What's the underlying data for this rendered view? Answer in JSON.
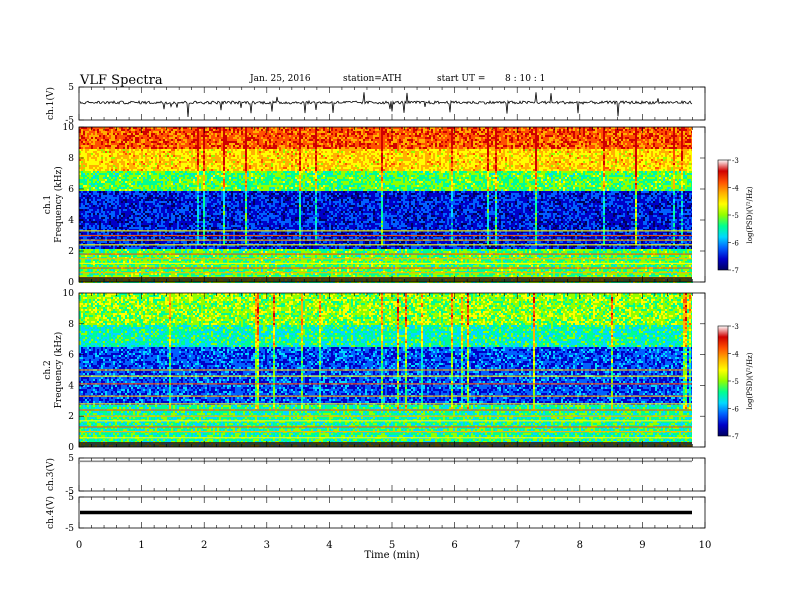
{
  "header": {
    "title": "VLF Spectra",
    "date": "Jan. 25, 2016",
    "station": "station=ATH",
    "start_label": "start UT =",
    "start_time": "8 : 10 : 1"
  },
  "chart_data": [
    {
      "type": "line",
      "name": "ch1-waveform",
      "ylabel": "ch.1(V)",
      "ylim": [
        -5,
        5
      ],
      "yticks": [
        5,
        -5
      ],
      "xlim": [
        0,
        10
      ],
      "baseline_v": 0.3,
      "description_series": "continuous voltage trace with spikes up to about +3 V and down to about -4 V"
    },
    {
      "type": "heatmap",
      "name": "ch1-spectrogram",
      "ylabel_channel": "ch.1",
      "ylabel": "Frequency (kHz)",
      "ylim": [
        0,
        10
      ],
      "yticks": [
        0,
        2,
        4,
        6,
        8,
        10
      ],
      "xlim": [
        0,
        9.8
      ],
      "colorbar": {
        "label": "log(PSD)(V²/Hz)",
        "range": [
          -7,
          -3
        ],
        "ticks": [
          -3,
          -4,
          -5,
          -6,
          -7
        ]
      },
      "bands": [
        {
          "kHz": [
            0,
            2.2
          ],
          "level": -5.0
        },
        {
          "kHz": [
            2.2,
            6.0
          ],
          "level": -6.3
        },
        {
          "kHz": [
            6.0,
            7.2
          ],
          "level": -5.0
        },
        {
          "kHz": [
            7.2,
            8.6
          ],
          "level": -4.2
        },
        {
          "kHz": [
            8.6,
            10
          ],
          "level": -3.6
        }
      ],
      "tones_kHz": [
        0.3,
        0.6,
        0.9,
        1.2,
        1.5,
        1.8,
        2.4,
        2.7,
        3.0,
        3.3
      ]
    },
    {
      "type": "heatmap",
      "name": "ch2-spectrogram",
      "ylabel_channel": "ch.2",
      "ylabel": "Frequency (kHz)",
      "ylim": [
        0,
        10
      ],
      "yticks": [
        0,
        2,
        4,
        6,
        8,
        10
      ],
      "xlim": [
        0,
        9.8
      ],
      "colorbar": {
        "label": "log(PSD)(V²/Hz)",
        "range": [
          -7,
          -3
        ],
        "ticks": [
          -3,
          -4,
          -5,
          -6,
          -7
        ]
      },
      "bands": [
        {
          "kHz": [
            0,
            2.8
          ],
          "level": -5.2
        },
        {
          "kHz": [
            2.8,
            6.5
          ],
          "level": -6.1
        },
        {
          "kHz": [
            6.5,
            8.0
          ],
          "level": -5.3
        },
        {
          "kHz": [
            8.0,
            10
          ],
          "level": -4.8
        }
      ],
      "tones_kHz": [
        0.6,
        1.0,
        1.3,
        1.7,
        2.0,
        2.4,
        2.8,
        3.3,
        4.1,
        4.6,
        5.0
      ]
    },
    {
      "type": "line",
      "name": "ch3-waveform",
      "ylabel": "ch.3(V)",
      "ylim": [
        -5,
        5
      ],
      "yticks": [
        5,
        -5
      ],
      "xlim": [
        0,
        10
      ],
      "baseline_v": 4.0
    },
    {
      "type": "line",
      "name": "ch4-waveform",
      "ylabel": "ch.4(V)",
      "ylim": [
        -5,
        5
      ],
      "yticks": [
        5,
        -5
      ],
      "xlim": [
        0,
        10
      ],
      "baseline_v": 0.0
    }
  ],
  "xaxis": {
    "label": "Time (min)",
    "ticks": [
      0,
      1,
      2,
      3,
      4,
      5,
      6,
      7,
      8,
      9,
      10
    ]
  },
  "colors": {
    "colormap": [
      "#000060",
      "#0000c8",
      "#0060ff",
      "#00d8ff",
      "#00ff90",
      "#90ff00",
      "#ffff00",
      "#ffb000",
      "#ff5000",
      "#d00000",
      "#ffffff"
    ],
    "trace": "#000000",
    "ch3_trace": "#8a8a8a"
  }
}
